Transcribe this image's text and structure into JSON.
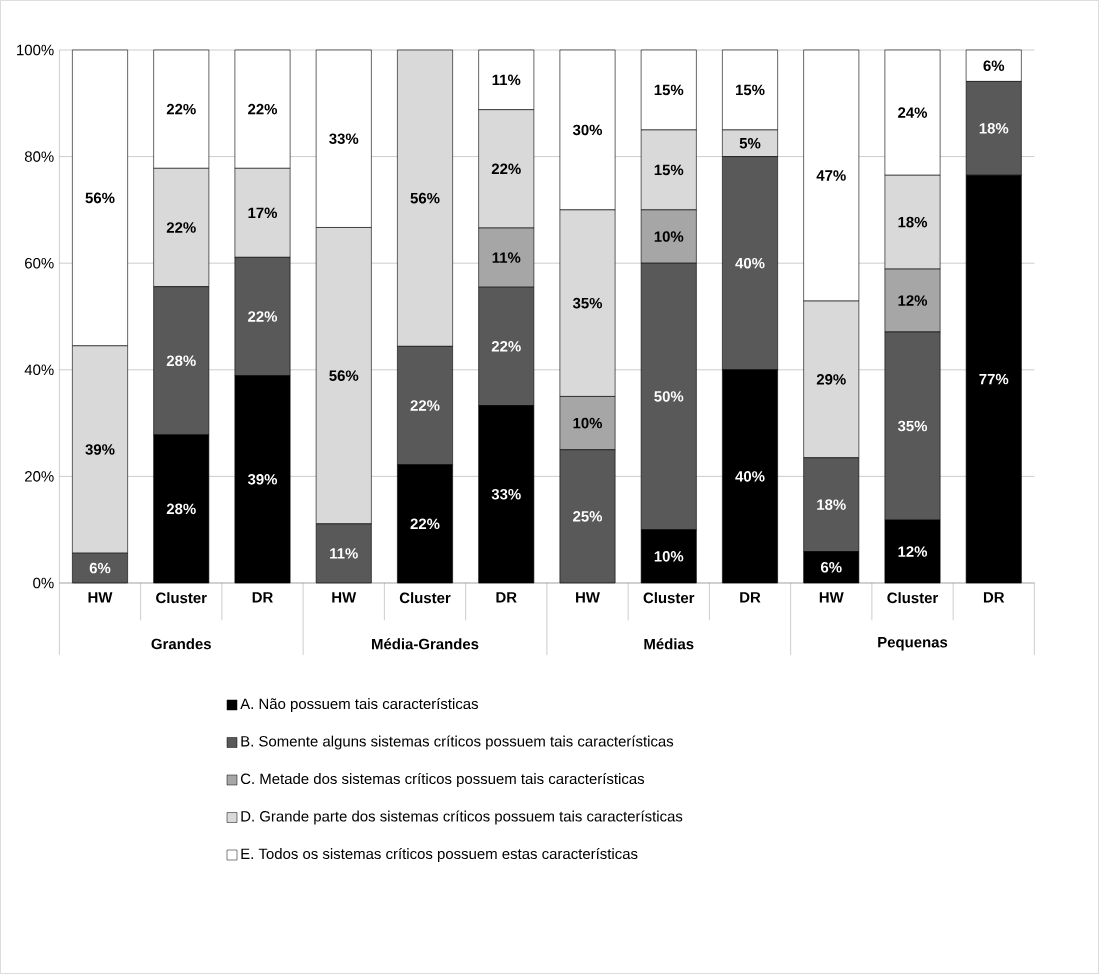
{
  "chart_data": {
    "type": "bar",
    "stacked": true,
    "categories": [
      "HW",
      "Cluster",
      "DR",
      "HW",
      "Cluster",
      "DR",
      "HW",
      "Cluster",
      "DR",
      "HW",
      "Cluster",
      "DR"
    ],
    "annotations": [
      "Grandes",
      "Média-Grandes",
      "Médias",
      "Pequenas"
    ],
    "series": [
      {
        "name": "A. Não possuem tais características",
        "color": "#000000",
        "values": [
          0,
          27.8,
          38.9,
          0,
          22.2,
          33.3,
          0,
          10,
          40,
          5.9,
          11.8,
          76.5
        ],
        "value_labels": [
          null,
          "28%",
          "39%",
          null,
          "22%",
          "33%",
          null,
          "10%",
          "40%",
          "6%",
          "12%",
          "77%"
        ]
      },
      {
        "name": "B. Somente alguns sistemas críticos possuem tais características",
        "color": "#595959",
        "values": [
          5.6,
          27.8,
          22.2,
          11.1,
          22.2,
          22.2,
          25,
          50,
          40,
          17.6,
          35.3,
          17.6
        ],
        "value_labels": [
          "6%",
          "28%",
          "22%",
          "11%",
          "22%",
          "22%",
          "25%",
          "50%",
          "40%",
          "18%",
          "35%",
          "18%"
        ]
      },
      {
        "name": "C. Metade dos sistemas críticos possuem tais características",
        "color": "#a6a6a6",
        "values": [
          0,
          0,
          0,
          0,
          0,
          11.1,
          10,
          10,
          0,
          0,
          11.8,
          0
        ],
        "value_labels": [
          null,
          null,
          null,
          null,
          null,
          "11%",
          "10%",
          "10%",
          null,
          null,
          "12%",
          null
        ]
      },
      {
        "name": "D. Grande parte dos sistemas críticos possuem tais características",
        "color": "#d9d9d9",
        "values": [
          38.9,
          22.2,
          16.7,
          55.6,
          55.6,
          22.2,
          35,
          15,
          5,
          29.4,
          17.6,
          0
        ],
        "value_labels": [
          "39%",
          "22%",
          "17%",
          "56%",
          "56%",
          "22%",
          "35%",
          "15%",
          "5%",
          "29%",
          "18%",
          null
        ]
      },
      {
        "name": "E. Todos os sistemas críticos possuem estas características",
        "color": "#ffffff",
        "values": [
          55.5,
          22.2,
          22.2,
          33.3,
          0,
          11.2,
          30,
          15,
          15,
          47.1,
          23.5,
          5.9
        ],
        "value_labels": [
          "56%",
          "22%",
          "22%",
          "33%",
          null,
          "11%",
          "30%",
          "15%",
          "15%",
          "47%",
          "24%",
          "6%"
        ]
      }
    ],
    "ylim": [
      0,
      100
    ],
    "yticks": [
      {
        "value": 0,
        "label": "0%"
      },
      {
        "value": 20,
        "label": "20%"
      },
      {
        "value": 40,
        "label": "40%"
      },
      {
        "value": 60,
        "label": "60%"
      },
      {
        "value": 80,
        "label": "80%"
      },
      {
        "value": 100,
        "label": "100%"
      }
    ],
    "grid": "y",
    "legend": "bottom"
  }
}
